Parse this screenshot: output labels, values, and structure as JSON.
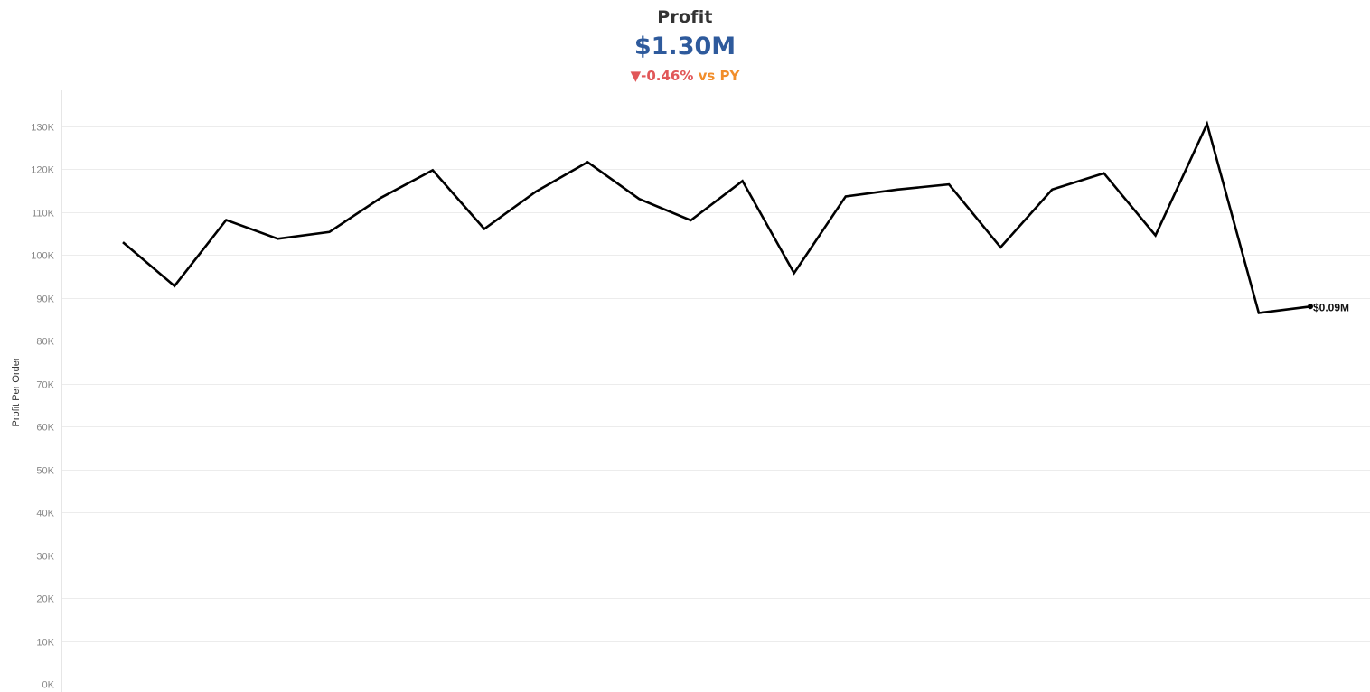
{
  "kpi": {
    "title": "Profit",
    "value": "$1.30M",
    "change_arrow": "▼",
    "change_pct": "-0.46%",
    "change_suffix": " vs PY",
    "arrow_color": "#e15759",
    "suffix_color": "#f28e2b",
    "value_color": "#2e5a9c"
  },
  "chart_data": {
    "type": "line",
    "ylabel": "Profit Per Order",
    "ylim": [
      0,
      135000
    ],
    "yticks": [
      0,
      10000,
      20000,
      30000,
      40000,
      50000,
      60000,
      70000,
      80000,
      90000,
      100000,
      110000,
      120000,
      130000
    ],
    "ytick_labels": [
      "0K",
      "10K",
      "20K",
      "30K",
      "40K",
      "50K",
      "60K",
      "70K",
      "80K",
      "90K",
      "100K",
      "110K",
      "120K",
      "130K"
    ],
    "grid": true,
    "series": [
      {
        "color": "#000000",
        "values": [
          103000,
          92800,
          108200,
          103800,
          105400,
          113400,
          119800,
          106100,
          114800,
          121700,
          113100,
          108100,
          117300,
          95800,
          113700,
          115300,
          116500,
          101800,
          115300,
          119100,
          104600,
          130600,
          86500,
          88000
        ]
      }
    ],
    "end_label": "$0.09M"
  }
}
